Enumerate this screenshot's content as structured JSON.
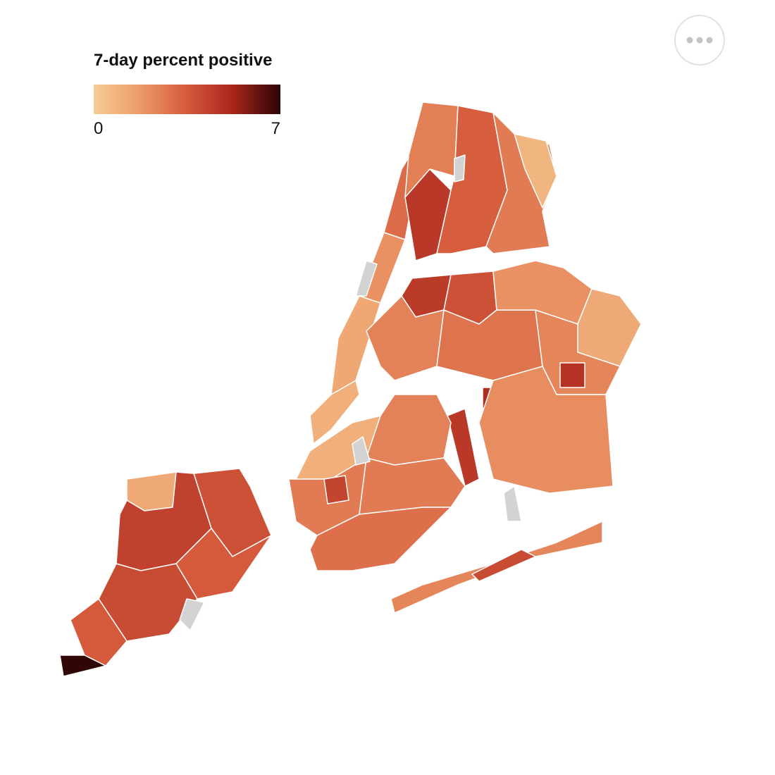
{
  "legend": {
    "title": "7-day percent positive",
    "min": 0,
    "max": 7,
    "colors": [
      "#f6cb94",
      "#ec9a68",
      "#d55a3c",
      "#a8241b",
      "#2a0505"
    ]
  },
  "missing_color": "#d3d3d3",
  "regions": {
    "values": [
      1.2,
      4.3,
      3.8,
      3.5,
      4.0,
      3.5,
      6.9,
      null,
      1.0,
      1.3,
      2.0,
      null,
      3.0,
      4.6,
      2.5,
      3.4,
      2.6,
      0.8,
      null,
      4.5,
      3.8,
      2.4,
      2.8,
      2.0,
      1.2,
      2.3,
      5.0,
      4.8,
      2.1,
      4.6,
      2.3,
      4.0,
      null,
      1.0,
      2.4,
      2.6,
      2.6,
      2.9,
      4.2,
      null
    ]
  }
}
